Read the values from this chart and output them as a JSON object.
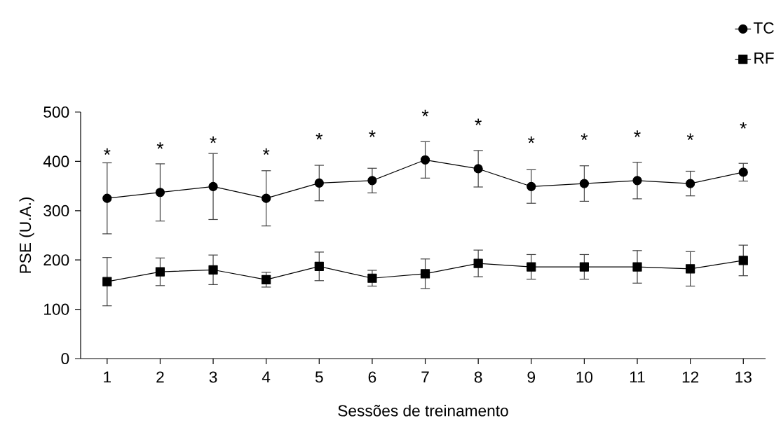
{
  "chart_data": {
    "type": "line",
    "xlabel": "Sessões de treinamento",
    "ylabel": "PSE (U.A.)",
    "categories": [
      "1",
      "2",
      "3",
      "4",
      "5",
      "6",
      "7",
      "8",
      "9",
      "10",
      "11",
      "12",
      "13"
    ],
    "series": [
      {
        "name": "TC",
        "color": "#000000",
        "marker": "circle",
        "values": [
          325,
          337,
          349,
          325,
          356,
          361,
          403,
          385,
          349,
          355,
          361,
          355,
          378
        ],
        "errors": [
          72,
          58,
          67,
          56,
          36,
          25,
          37,
          37,
          34,
          36,
          37,
          25,
          18
        ]
      },
      {
        "name": "RF",
        "color": "#000000",
        "marker": "square",
        "values": [
          156,
          176,
          180,
          160,
          187,
          163,
          172,
          193,
          186,
          186,
          186,
          182,
          199
        ],
        "errors": [
          49,
          28,
          30,
          15,
          29,
          16,
          30,
          27,
          25,
          25,
          33,
          35,
          31
        ]
      }
    ],
    "ylim": [
      0,
      500
    ],
    "yticks": [
      0,
      100,
      200,
      300,
      400,
      500
    ],
    "grid": false,
    "legend": "top right",
    "line_style": "solid",
    "annotations": [
      "*",
      "*",
      "*",
      "*",
      "*",
      "*",
      "*",
      "*",
      "*",
      "*",
      "*",
      "*",
      "*"
    ]
  }
}
